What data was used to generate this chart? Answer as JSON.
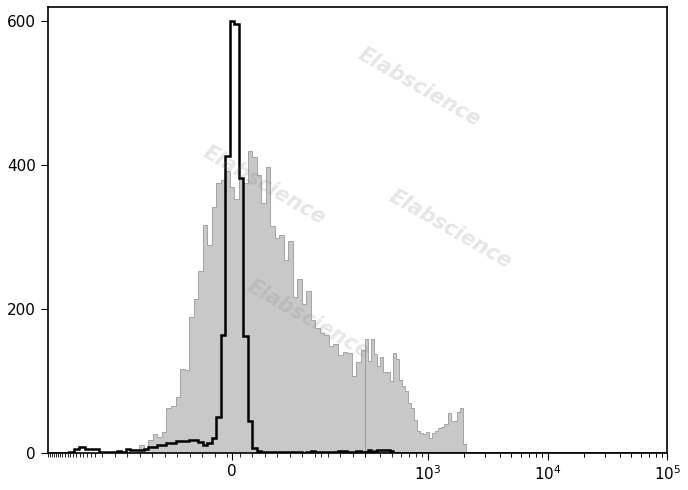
{
  "title": "",
  "xlabel": "",
  "ylabel": "",
  "ylim": [
    0,
    620
  ],
  "yticks": [
    0,
    200,
    400,
    600
  ],
  "watermark": "Elabscience",
  "background_color": "#ffffff",
  "black_hist_color": "#000000",
  "gray_hist_color": "#c8c8c8",
  "gray_hist_edge": "#999999",
  "black_peak": 600,
  "gray_peak": 420,
  "linthresh": 300,
  "linscale": 1.0,
  "xlim_left": -800,
  "xlim_right": 100000
}
